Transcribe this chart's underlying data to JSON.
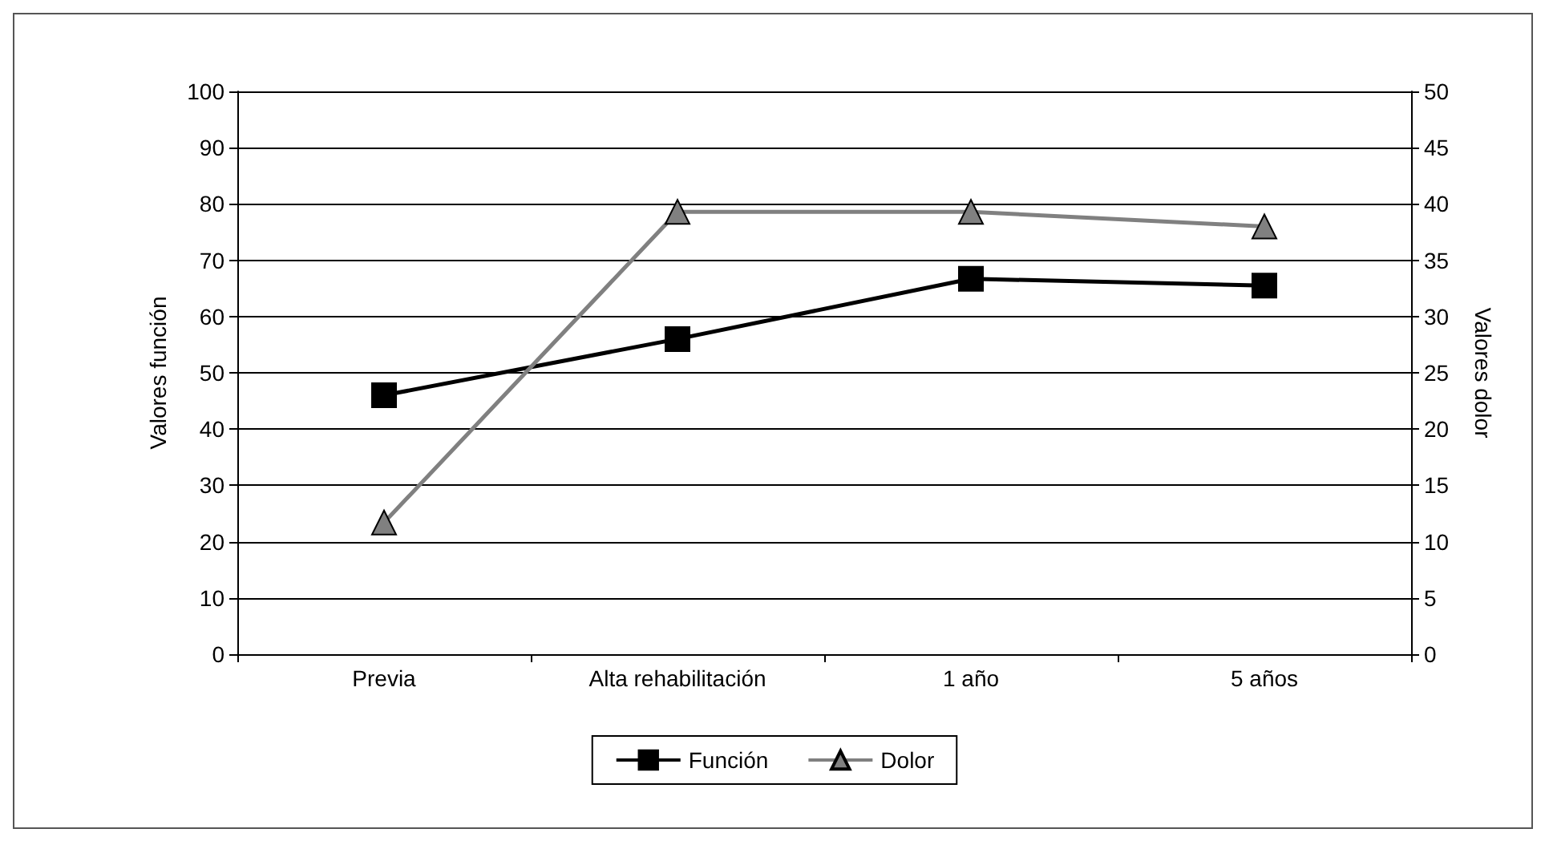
{
  "chart_data": {
    "type": "line",
    "categories": [
      "Previa",
      "Alta rehabilitación",
      "1 año",
      "5 años"
    ],
    "ylabel": "Valores función",
    "y2label": "Valores dolor",
    "ylim": [
      0,
      100
    ],
    "yticks": [
      0,
      10,
      20,
      30,
      40,
      50,
      60,
      70,
      80,
      90,
      100
    ],
    "y2lim": [
      0,
      50
    ],
    "y2ticks": [
      0,
      5,
      10,
      15,
      20,
      25,
      30,
      35,
      40,
      45,
      50
    ],
    "grid": "y",
    "legend": "bottom",
    "line_style": "solid",
    "series": [
      {
        "name": "Función",
        "color": "#000000",
        "marker": "square",
        "values": [
          46,
          56,
          66.7,
          65.5
        ]
      },
      {
        "name": "Dolor",
        "color": "#808080",
        "marker": "triangle",
        "axis": "y2",
        "values": [
          11.7,
          39.3,
          39.3,
          38
        ]
      }
    ]
  }
}
